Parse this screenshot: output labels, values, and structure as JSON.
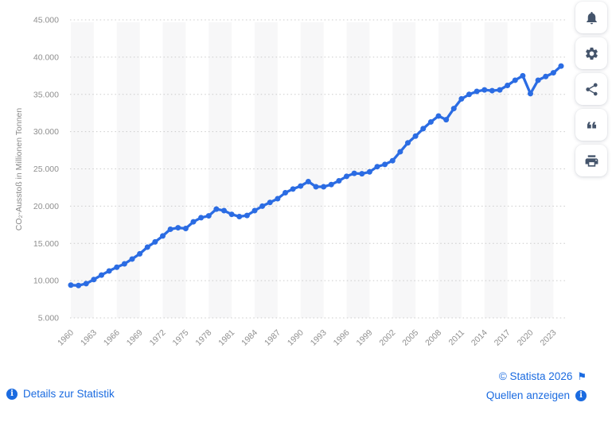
{
  "chart_data": {
    "type": "line",
    "ylabel": "CO₂-Ausstoß in Millionen Tonnen",
    "xlabel": "",
    "legend": "none",
    "grid": "horizontal-dotted",
    "ylim": [
      5000,
      45000
    ],
    "line_color": "#2b6ce3",
    "marker": "circle",
    "stripe_color": "#f7f7f8",
    "grid_color": "#cbcbcb",
    "tick_color": "#8f8f8f",
    "y_ticks": [
      {
        "value": 45000,
        "label": "45.000"
      },
      {
        "value": 40000,
        "label": "40.000"
      },
      {
        "value": 35000,
        "label": "35.000"
      },
      {
        "value": 30000,
        "label": "30.000"
      },
      {
        "value": 25000,
        "label": "25.000"
      },
      {
        "value": 20000,
        "label": "20.000"
      },
      {
        "value": 15000,
        "label": "15.000"
      },
      {
        "value": 10000,
        "label": "10.000"
      },
      {
        "value": 5000,
        "label": "5.000"
      }
    ],
    "x_tick_labels": [
      "1960",
      "1963",
      "1966",
      "1969",
      "1972",
      "1975",
      "1978",
      "1981",
      "1984",
      "1987",
      "1990",
      "1993",
      "1996",
      "1999",
      "2002",
      "2005",
      "2008",
      "2011",
      "2014",
      "2017",
      "2020",
      "2023"
    ],
    "x": [
      1960,
      1961,
      1962,
      1963,
      1964,
      1965,
      1966,
      1967,
      1968,
      1969,
      1970,
      1971,
      1972,
      1973,
      1974,
      1975,
      1976,
      1977,
      1978,
      1979,
      1980,
      1981,
      1982,
      1983,
      1984,
      1985,
      1986,
      1987,
      1988,
      1989,
      1990,
      1991,
      1992,
      1993,
      1994,
      1995,
      1996,
      1997,
      1998,
      1999,
      2000,
      2001,
      2002,
      2003,
      2004,
      2005,
      2006,
      2007,
      2008,
      2009,
      2010,
      2011,
      2012,
      2013,
      2014,
      2015,
      2016,
      2017,
      2018,
      2019,
      2020,
      2021,
      2022,
      2023,
      2024
    ],
    "values": [
      9400,
      9350,
      9600,
      10150,
      10750,
      11300,
      11800,
      12250,
      12900,
      13600,
      14500,
      15200,
      16000,
      16900,
      17100,
      17000,
      17900,
      18450,
      18700,
      19600,
      19400,
      18900,
      18600,
      18750,
      19400,
      20000,
      20500,
      21000,
      21800,
      22300,
      22700,
      23300,
      22600,
      22600,
      22900,
      23400,
      24000,
      24400,
      24350,
      24600,
      25300,
      25600,
      26100,
      27300,
      28500,
      29400,
      30400,
      31300,
      32100,
      31600,
      33100,
      34400,
      35000,
      35400,
      35600,
      35500,
      35600,
      36200,
      36900,
      37500,
      35100,
      36900,
      37400,
      37900,
      38800
    ]
  },
  "toolbar": {
    "buttons": [
      {
        "name": "notifications",
        "icon": "bell-icon"
      },
      {
        "name": "settings",
        "icon": "gear-icon"
      },
      {
        "name": "share",
        "icon": "share-icon"
      },
      {
        "name": "cite",
        "icon": "quote-icon"
      },
      {
        "name": "print",
        "icon": "printer-icon"
      }
    ]
  },
  "footer": {
    "details_link": "Details zur Statistik",
    "copyright": "© Statista 2026",
    "flag_icon": "⚑",
    "info_icon": "i",
    "sources_link": "Quellen anzeigen"
  }
}
